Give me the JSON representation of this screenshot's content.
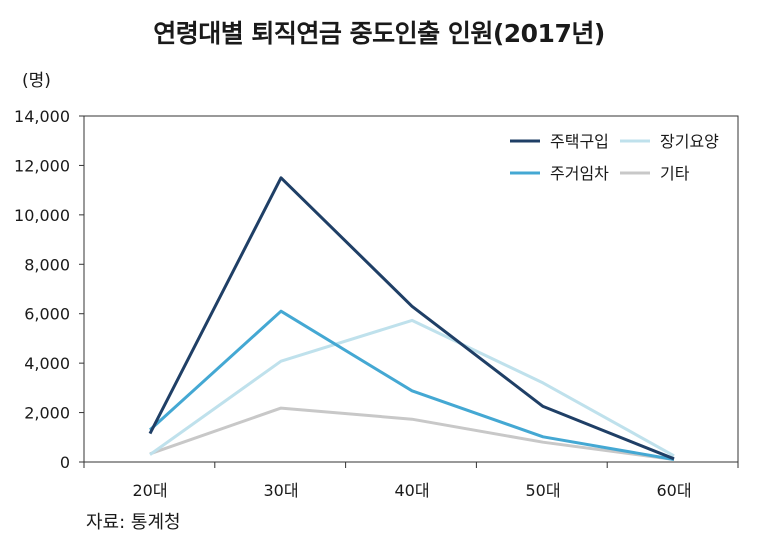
{
  "chart_data": {
    "type": "line",
    "title": "연령대별 퇴직연금 중도인출 인원(2017년)",
    "ylabel": "(명)",
    "source": "자료: 통계청",
    "categories": [
      "20대",
      "30대",
      "40대",
      "50대",
      "60대"
    ],
    "ylim": [
      0,
      14000
    ],
    "yticks": [
      0,
      2000,
      4000,
      6000,
      8000,
      10000,
      12000,
      14000
    ],
    "ytick_labels": [
      "0",
      "2,000",
      "4,000",
      "6,000",
      "8,000",
      "10,000",
      "12,000",
      "14,000"
    ],
    "legend_position": "top-right",
    "series": [
      {
        "name": "주택구입",
        "color": "#1f3f66",
        "values": [
          1150,
          11500,
          6300,
          2250,
          130
        ]
      },
      {
        "name": "장기요양",
        "color": "#bfe1ec",
        "values": [
          300,
          4080,
          5730,
          3200,
          250
        ]
      },
      {
        "name": "주거임차",
        "color": "#44a8d3",
        "values": [
          1300,
          6100,
          2880,
          1020,
          100
        ]
      },
      {
        "name": "기타",
        "color": "#c8c8c8",
        "values": [
          330,
          2180,
          1730,
          800,
          100
        ]
      }
    ]
  }
}
